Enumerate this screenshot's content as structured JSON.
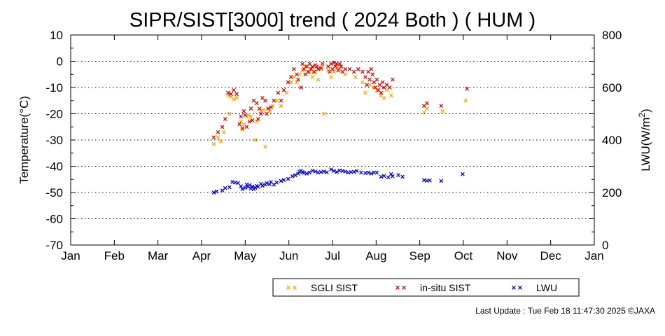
{
  "chart_data": {
    "type": "scatter",
    "title": "SIPR/SIST[3000] trend ( 2024 Both ) ( HUM )",
    "ylabel": "Temperature(°C)",
    "y2label": "LWU(W/m²)",
    "ylim": [
      -70,
      10
    ],
    "yticks": [
      "10",
      "0",
      "-10",
      "-20",
      "-30",
      "-40",
      "-50",
      "-60",
      "-70"
    ],
    "y2lim": [
      0,
      800
    ],
    "y2ticks": [
      "800",
      "600",
      "400",
      "200",
      "0"
    ],
    "xticks": [
      "Jan",
      "Feb",
      "Mar",
      "Apr",
      "May",
      "Jun",
      "Jul",
      "Aug",
      "Sep",
      "Oct",
      "Nov",
      "Dec",
      "Jan"
    ],
    "grid": "horizontal-dotted",
    "legend_position": "bottom",
    "marker": "×",
    "series": [
      {
        "name": "SGLI SIST",
        "axis": "left",
        "color": "#ffa500",
        "points": [
          [
            101,
            -31.5
          ],
          [
            104,
            -29
          ],
          [
            106,
            -30.5
          ],
          [
            108,
            -27
          ],
          [
            111,
            -13
          ],
          [
            112,
            -20
          ],
          [
            113,
            -13.5
          ],
          [
            115,
            -14.5
          ],
          [
            117,
            -14
          ],
          [
            120,
            -23
          ],
          [
            121,
            -26
          ],
          [
            122,
            -24
          ],
          [
            124,
            -21
          ],
          [
            125,
            -20.5
          ],
          [
            127,
            -21
          ],
          [
            130,
            -30
          ],
          [
            131,
            -23
          ],
          [
            134,
            -19
          ],
          [
            136,
            -18.5
          ],
          [
            137,
            -32.5
          ],
          [
            140,
            -19
          ],
          [
            142,
            -17
          ],
          [
            145,
            -15
          ],
          [
            148,
            -17
          ],
          [
            152,
            -12
          ],
          [
            155,
            -8
          ],
          [
            157,
            -6
          ],
          [
            159,
            -8
          ],
          [
            161,
            -5
          ],
          [
            163,
            -3.5
          ],
          [
            165,
            -2
          ],
          [
            168,
            -4
          ],
          [
            170,
            -6
          ],
          [
            172,
            -4
          ],
          [
            174,
            -7
          ],
          [
            176,
            -3
          ],
          [
            178,
            -20
          ],
          [
            181,
            -3.5
          ],
          [
            183,
            -6
          ],
          [
            185,
            -4
          ],
          [
            187,
            -2.5
          ],
          [
            189,
            -3
          ],
          [
            193,
            -5
          ],
          [
            200,
            -6
          ],
          [
            205,
            -8
          ],
          [
            207,
            -12
          ],
          [
            210,
            -9
          ],
          [
            213,
            -10
          ],
          [
            215,
            -11
          ],
          [
            218,
            -13
          ],
          [
            220,
            -14
          ],
          [
            222,
            -11
          ],
          [
            225,
            -13
          ],
          [
            248,
            -19.5
          ],
          [
            250,
            -18
          ],
          [
            261,
            -19
          ],
          [
            277,
            -15
          ]
        ]
      },
      {
        "name": "in-situ SIST",
        "axis": "left",
        "color": "#e00000",
        "points": [
          [
            101,
            -29
          ],
          [
            104,
            -27
          ],
          [
            107,
            -25
          ],
          [
            109,
            -22
          ],
          [
            111,
            -12
          ],
          [
            113,
            -12.5
          ],
          [
            115,
            -11
          ],
          [
            117,
            -12.5
          ],
          [
            119,
            -24
          ],
          [
            120,
            -21
          ],
          [
            121,
            -25.5
          ],
          [
            122,
            -19
          ],
          [
            123,
            -20.5
          ],
          [
            124,
            -25
          ],
          [
            126,
            -23
          ],
          [
            127,
            -18
          ],
          [
            128,
            -22.5
          ],
          [
            129,
            -15
          ],
          [
            131,
            -16
          ],
          [
            132,
            -22
          ],
          [
            133,
            -18
          ],
          [
            134,
            -20
          ],
          [
            135,
            -14
          ],
          [
            137,
            -15
          ],
          [
            138,
            -20
          ],
          [
            139,
            -18
          ],
          [
            141,
            -17.5
          ],
          [
            143,
            -15
          ],
          [
            146,
            -12
          ],
          [
            148,
            -15
          ],
          [
            150,
            -11
          ],
          [
            153,
            -8
          ],
          [
            155,
            -6
          ],
          [
            157,
            -3
          ],
          [
            159,
            -5
          ],
          [
            160,
            -7
          ],
          [
            162,
            -10
          ],
          [
            163,
            -1
          ],
          [
            164,
            -3
          ],
          [
            165,
            -5
          ],
          [
            166,
            -2
          ],
          [
            167,
            -4
          ],
          [
            168,
            -1
          ],
          [
            169,
            -3
          ],
          [
            170,
            -2
          ],
          [
            171,
            -4
          ],
          [
            172,
            -1.5
          ],
          [
            173,
            -2
          ],
          [
            174,
            -3
          ],
          [
            176,
            -2.5
          ],
          [
            177,
            -1
          ],
          [
            181,
            -2
          ],
          [
            182,
            -4
          ],
          [
            183,
            -1
          ],
          [
            184,
            -3
          ],
          [
            185,
            -0.5
          ],
          [
            186,
            -2
          ],
          [
            187,
            -1
          ],
          [
            188,
            -3.5
          ],
          [
            189,
            -1
          ],
          [
            190,
            -2
          ],
          [
            191,
            -4
          ],
          [
            193,
            -3
          ],
          [
            196,
            -3
          ],
          [
            199,
            -4
          ],
          [
            202,
            -3
          ],
          [
            205,
            -4
          ],
          [
            207,
            -6
          ],
          [
            208,
            -9
          ],
          [
            209,
            -4
          ],
          [
            210,
            -7
          ],
          [
            211,
            -3
          ],
          [
            212,
            -5
          ],
          [
            213,
            -8
          ],
          [
            214,
            -10
          ],
          [
            215,
            -7
          ],
          [
            216,
            -11
          ],
          [
            217,
            -9
          ],
          [
            218,
            -12
          ],
          [
            219,
            -8
          ],
          [
            220,
            -10
          ],
          [
            222,
            -9
          ],
          [
            224,
            -10
          ],
          [
            226,
            -7
          ],
          [
            248,
            -17
          ],
          [
            250,
            -16
          ],
          [
            260,
            -17
          ],
          [
            278,
            -10.5
          ]
        ]
      },
      {
        "name": "LWU",
        "axis": "right",
        "color": "#0000dd",
        "points": [
          [
            101,
            200
          ],
          [
            103,
            204
          ],
          [
            107,
            208
          ],
          [
            109,
            217
          ],
          [
            112,
            220
          ],
          [
            114,
            240
          ],
          [
            116,
            238
          ],
          [
            118,
            236
          ],
          [
            120,
            224
          ],
          [
            121,
            213
          ],
          [
            123,
            218
          ],
          [
            124,
            230
          ],
          [
            125,
            222
          ],
          [
            126,
            228
          ],
          [
            127,
            215
          ],
          [
            128,
            223
          ],
          [
            129,
            213
          ],
          [
            130,
            218
          ],
          [
            131,
            225
          ],
          [
            132,
            222
          ],
          [
            134,
            233
          ],
          [
            135,
            226
          ],
          [
            137,
            230
          ],
          [
            138,
            236
          ],
          [
            140,
            232
          ],
          [
            141,
            240
          ],
          [
            143,
            230
          ],
          [
            145,
            238
          ],
          [
            148,
            244
          ],
          [
            150,
            248
          ],
          [
            153,
            252
          ],
          [
            156,
            262
          ],
          [
            158,
            266
          ],
          [
            160,
            272
          ],
          [
            161,
            279
          ],
          [
            162,
            283
          ],
          [
            163,
            278
          ],
          [
            164,
            275
          ],
          [
            166,
            272
          ],
          [
            168,
            276
          ],
          [
            170,
            283
          ],
          [
            172,
            280
          ],
          [
            174,
            276
          ],
          [
            176,
            278
          ],
          [
            178,
            280
          ],
          [
            180,
            277
          ],
          [
            183,
            288
          ],
          [
            185,
            282
          ],
          [
            187,
            278
          ],
          [
            189,
            284
          ],
          [
            191,
            282
          ],
          [
            193,
            280
          ],
          [
            195,
            276
          ],
          [
            197,
            278
          ],
          [
            199,
            279
          ],
          [
            201,
            282
          ],
          [
            204,
            276
          ],
          [
            207,
            274
          ],
          [
            209,
            276
          ],
          [
            211,
            272
          ],
          [
            213,
            276
          ],
          [
            215,
            276
          ],
          [
            218,
            260
          ],
          [
            220,
            263
          ],
          [
            223,
            258
          ],
          [
            225,
            270
          ],
          [
            226,
            262
          ],
          [
            230,
            266
          ],
          [
            233,
            260
          ],
          [
            248,
            247
          ],
          [
            250,
            245
          ],
          [
            252,
            246
          ],
          [
            260,
            244
          ],
          [
            275,
            270
          ]
        ]
      }
    ]
  },
  "footer": "Last Update : Tue Feb 18 11:47:30 2025  ©JAXA"
}
